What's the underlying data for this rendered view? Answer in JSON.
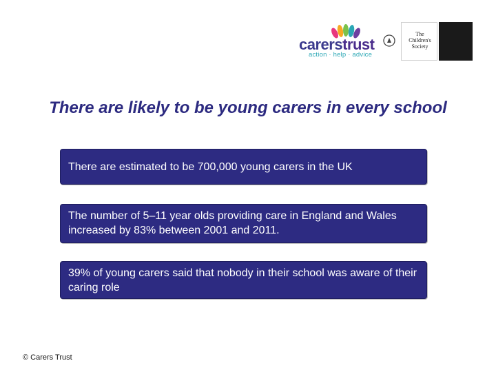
{
  "header": {
    "carers_trust_logo": {
      "word_main": "carers",
      "word_trust": "trust",
      "tagline": "action · help · advice",
      "icon": "petal-flower-icon",
      "colors": [
        "#e8377e",
        "#f7a823",
        "#7bc24a",
        "#2aa7b5",
        "#6d3fa0"
      ]
    },
    "crest_icon": "crest-icon",
    "childrens_society_logo": {
      "text": "The Children's Society"
    }
  },
  "slide": {
    "title": "There are likely to be young carers in every school",
    "facts": [
      "There are estimated to be 700,000 young carers in the UK",
      "The number of 5–11 year olds providing care in England and Wales increased by 83% between 2001 and 2011.",
      "39% of young carers said that nobody in their school was aware of their caring role"
    ],
    "footer": "© Carers Trust"
  },
  "colors": {
    "title": "#2c2a80",
    "box_fill": "#2d2b82",
    "box_text": "#ffffff"
  }
}
